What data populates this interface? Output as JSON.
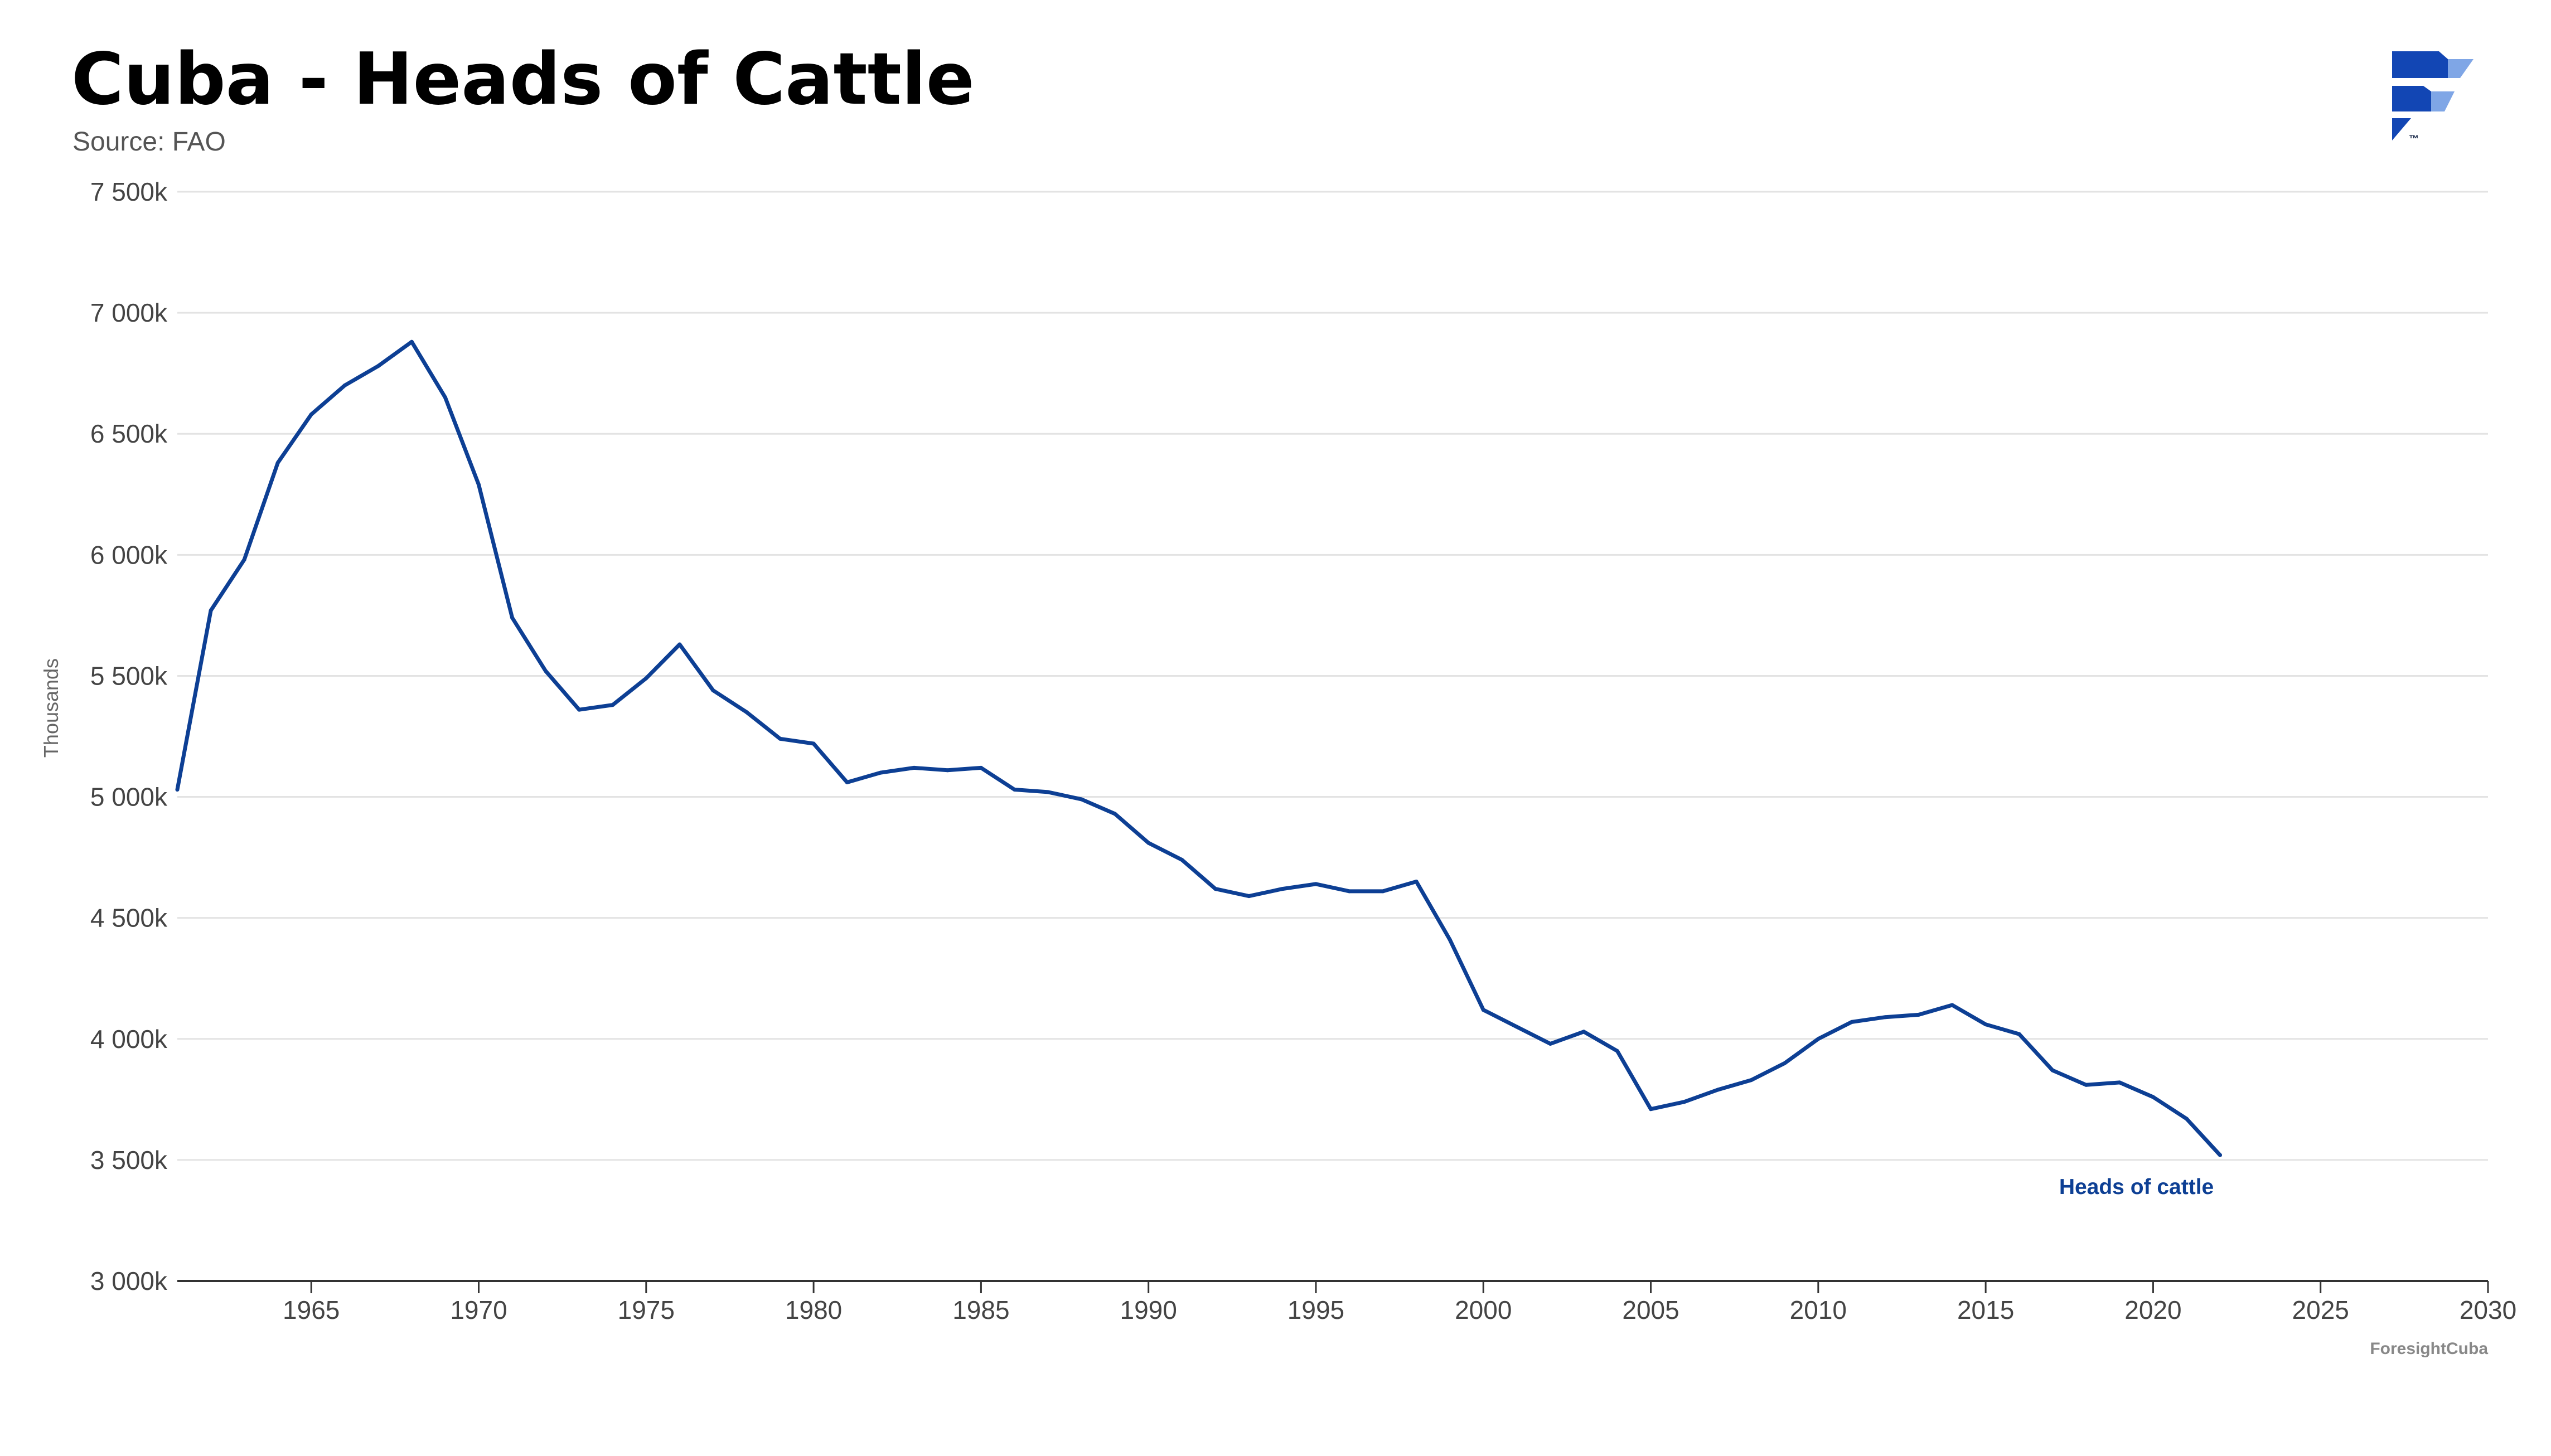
{
  "header": {
    "title": "Cuba - Heads of Cattle",
    "source": "Source: FAO"
  },
  "footer": {
    "credit": "ForesightCuba"
  },
  "colors": {
    "line": "#0d3f94",
    "grid": "#e3e3e3",
    "axis": "#333333",
    "logo_dark": "#1246b4",
    "logo_light": "#7fa6e6"
  },
  "icons": {
    "logo": "foresight-logo-icon"
  },
  "chart_data": {
    "type": "line",
    "title": "Cuba - Heads of Cattle",
    "subtitle": "Source: FAO",
    "xlabel": "",
    "ylabel": "Thousands",
    "xlim": [
      1961,
      2030
    ],
    "ylim": [
      3000,
      7500
    ],
    "grid": true,
    "y_ticks": [
      3000,
      3500,
      4000,
      4500,
      5000,
      5500,
      6000,
      6500,
      7000,
      7500
    ],
    "y_tick_labels": [
      "3 000k",
      "3 500k",
      "4 000k",
      "4 500k",
      "5 000k",
      "5 500k",
      "6 000k",
      "6 500k",
      "7 000k",
      "7 500k"
    ],
    "x_ticks": [
      1965,
      1970,
      1975,
      1980,
      1985,
      1990,
      1995,
      2000,
      2005,
      2010,
      2015,
      2020,
      2025,
      2030
    ],
    "x_tick_labels": [
      "1965",
      "1970",
      "1975",
      "1980",
      "1985",
      "1990",
      "1995",
      "2000",
      "2005",
      "2010",
      "2015",
      "2020",
      "2025",
      "2030"
    ],
    "series": [
      {
        "name": "Heads of cattle",
        "x": [
          1961,
          1962,
          1963,
          1964,
          1965,
          1966,
          1967,
          1968,
          1969,
          1970,
          1971,
          1972,
          1973,
          1974,
          1975,
          1976,
          1977,
          1978,
          1979,
          1980,
          1981,
          1982,
          1983,
          1984,
          1985,
          1986,
          1987,
          1988,
          1989,
          1990,
          1991,
          1992,
          1993,
          1994,
          1995,
          1996,
          1997,
          1998,
          1999,
          2000,
          2001,
          2002,
          2003,
          2004,
          2005,
          2006,
          2007,
          2008,
          2009,
          2010,
          2011,
          2012,
          2013,
          2014,
          2015,
          2016,
          2017,
          2018,
          2019,
          2020,
          2021,
          2022
        ],
        "values": [
          5030,
          5770,
          5980,
          6380,
          6580,
          6700,
          6780,
          6880,
          6650,
          6290,
          5740,
          5520,
          5360,
          5380,
          5490,
          5630,
          5440,
          5350,
          5240,
          5220,
          5060,
          5100,
          5120,
          5110,
          5120,
          5030,
          5020,
          4990,
          4930,
          4810,
          4740,
          4620,
          4590,
          4620,
          4640,
          4610,
          4610,
          4650,
          4410,
          4120,
          4050,
          3980,
          4030,
          3950,
          3710,
          3740,
          3790,
          3830,
          3900,
          4000,
          4070,
          4090,
          4100,
          4140,
          4060,
          4020,
          3870,
          3810,
          3820,
          3760,
          3670,
          3520
        ]
      }
    ]
  }
}
